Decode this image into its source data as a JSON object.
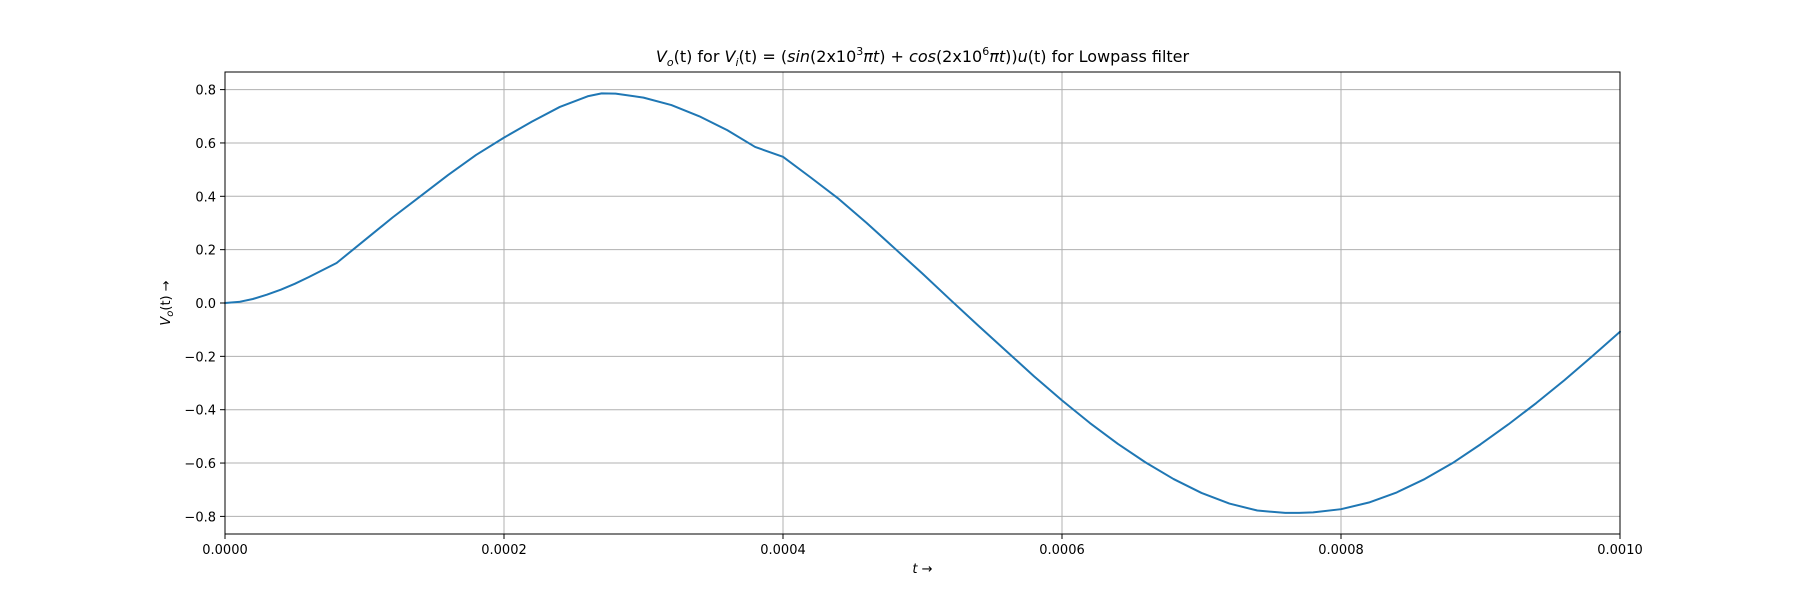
{
  "chart_data": {
    "type": "line",
    "title_parts": {
      "v": "V",
      "o": "o",
      "t1": "(t) for ",
      "v2": "V",
      "i": "i",
      "t2": "(t) = (",
      "sin": "sin",
      "t3": "(2x10",
      "e3": "3",
      "pit1": "πt",
      "t4": ") + ",
      "cos": "cos",
      "t5": "(2x10",
      "e6": "6",
      "pit2": "πt",
      "t6": "))",
      "u": "u",
      "t7": "(t) for Lowpass filter"
    },
    "title": "Vo(t) for Vi(t) = (sin(2x10^3πt) + cos(2x10^6πt))u(t) for Lowpass filter",
    "xlabel": "t →",
    "ylabel": "Vo(t) →",
    "xlabel_parts": {
      "var": "t",
      "arrow": " →"
    },
    "ylabel_parts": {
      "v": "V",
      "o": "o",
      "rest": "(t) →"
    },
    "xlim": [
      0,
      0.001
    ],
    "ylim": [
      -0.866,
      0.866
    ],
    "x_ticks": [
      0,
      0.0002,
      0.0004,
      0.0006,
      0.0008,
      0.001
    ],
    "x_tick_labels": [
      "0.0000",
      "0.0002",
      "0.0004",
      "0.0006",
      "0.0008",
      "0.0010"
    ],
    "y_ticks": [
      0.8,
      0.6,
      0.4,
      0.2,
      0.0,
      -0.2,
      -0.4,
      -0.6,
      -0.8
    ],
    "y_tick_labels": [
      "0.8",
      "0.6",
      "0.4",
      "0.2",
      "0.0",
      "−0.2",
      "−0.4",
      "−0.6",
      "−0.8"
    ],
    "grid": true,
    "series": [
      {
        "color": "#1f77b4",
        "x": [
          0,
          1e-05,
          2e-05,
          3e-05,
          4e-05,
          5e-05,
          6e-05,
          8e-05,
          0.0001,
          0.00012,
          0.00014,
          0.00016,
          0.00018,
          0.0002,
          0.00022,
          0.00024,
          0.00026,
          0.00027,
          0.00028,
          0.0003,
          0.00032,
          0.00034,
          0.00036,
          0.00038,
          0.0004,
          0.00042,
          0.00044,
          0.00046,
          0.00048,
          0.0005,
          0.00052,
          0.00054,
          0.00056,
          0.00058,
          0.0006,
          0.00062,
          0.00064,
          0.00066,
          0.00068,
          0.0007,
          0.00072,
          0.00074,
          0.00076,
          0.00077,
          0.00078,
          0.0008,
          0.00082,
          0.00084,
          0.00086,
          0.00088,
          0.0009,
          0.00092,
          0.00094,
          0.00096,
          0.00098,
          0.001
        ],
        "y": [
          0.0,
          0.004,
          0.015,
          0.031,
          0.05,
          0.072,
          0.097,
          0.15,
          0.235,
          0.32,
          0.4,
          0.48,
          0.555,
          0.62,
          0.68,
          0.735,
          0.775,
          0.786,
          0.785,
          0.77,
          0.742,
          0.7,
          0.648,
          0.585,
          0.548,
          0.47,
          0.39,
          0.3,
          0.205,
          0.11,
          0.012,
          -0.085,
          -0.18,
          -0.275,
          -0.365,
          -0.45,
          -0.528,
          -0.598,
          -0.66,
          -0.712,
          -0.752,
          -0.778,
          -0.787,
          -0.787,
          -0.785,
          -0.773,
          -0.748,
          -0.71,
          -0.66,
          -0.6,
          -0.53,
          -0.455,
          -0.375,
          -0.29,
          -0.2,
          -0.108
        ]
      }
    ]
  }
}
